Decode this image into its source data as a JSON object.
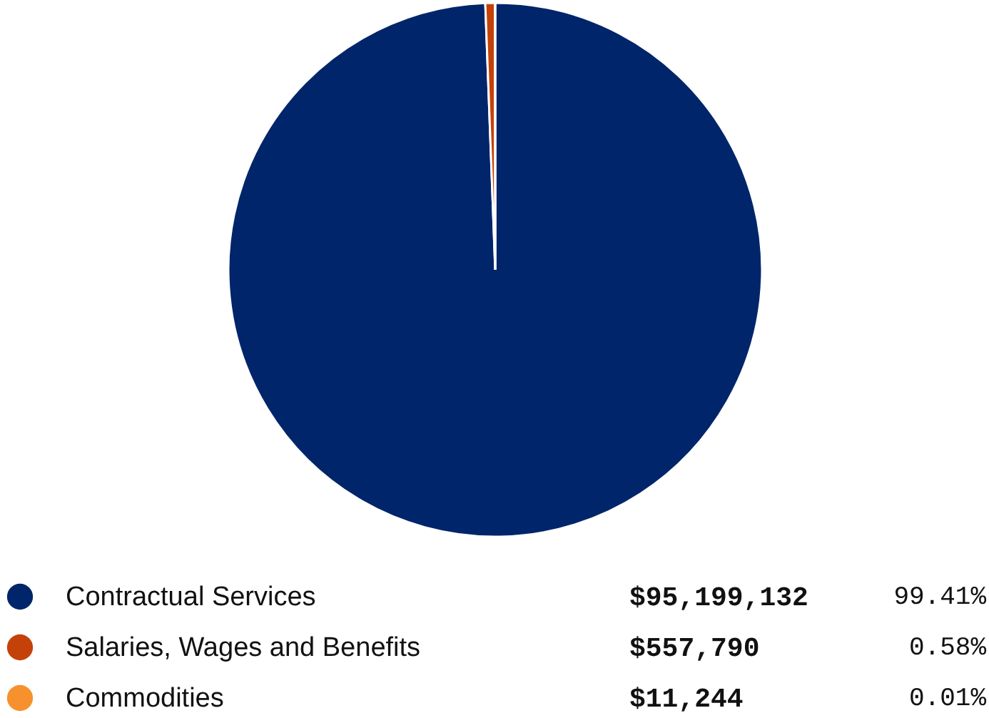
{
  "chart_data": {
    "type": "pie",
    "categories": [
      "Contractual Services",
      "Salaries, Wages and Benefits",
      "Commodities"
    ],
    "values": [
      95199132,
      557790,
      11244
    ],
    "colors": [
      "#00256a",
      "#c4420a",
      "#f7912d"
    ],
    "value_labels": [
      "$95,199,132",
      "$557,790",
      "$11,244"
    ],
    "annotations": [
      "99.41%",
      "0.58%",
      "0.01%"
    ],
    "legend": "bottom"
  }
}
